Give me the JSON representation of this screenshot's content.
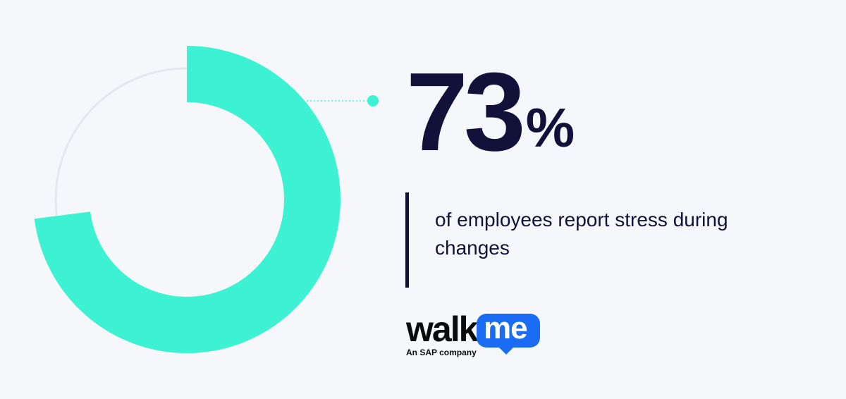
{
  "chart_data": {
    "type": "pie",
    "variant": "donut",
    "values": [
      73
    ],
    "unit": "%",
    "colors": {
      "filled": "#3cf2d2",
      "track": "#e3e8ef",
      "text": "#11113a"
    }
  },
  "stat": {
    "number": "73",
    "percent_sign": "%",
    "caption": "of employees report stress during changes"
  },
  "logo": {
    "walk_text": "walk",
    "me_text": "me",
    "tagline": "An SAP company",
    "accent": "#1a6cf4"
  }
}
